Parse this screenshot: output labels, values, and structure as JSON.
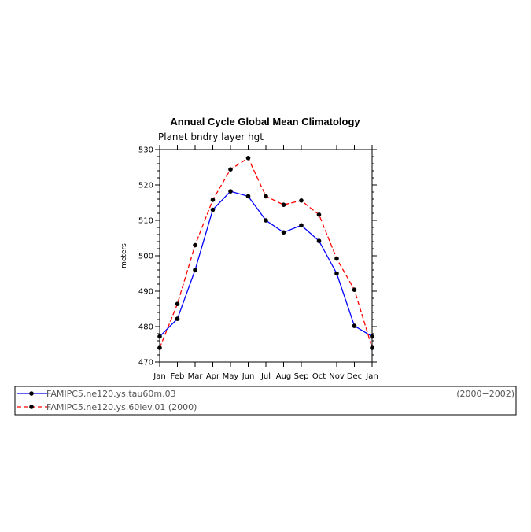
{
  "chart_data": {
    "type": "line",
    "title": "Annual Cycle Global Mean Climatology",
    "subtitle": "Planet bndry layer hgt",
    "ylabel": "meters",
    "xlabel": "",
    "categories": [
      "Jan",
      "Feb",
      "Mar",
      "Apr",
      "May",
      "Jun",
      "Jul",
      "Aug",
      "Sep",
      "Oct",
      "Nov",
      "Dec",
      "Jan"
    ],
    "ylim": [
      470,
      530
    ],
    "yticks": [
      470,
      480,
      490,
      500,
      510,
      520,
      530
    ],
    "grid": false,
    "legend_position": "bottom",
    "series": [
      {
        "name": "FAMIPC5.ne120.ys.tau60m.03",
        "period": "(2000−2002)",
        "color": "#0000ff",
        "dash": "solid",
        "values": [
          477.2,
          482.2,
          496.0,
          513.0,
          518.2,
          516.8,
          510.0,
          506.6,
          508.6,
          504.2,
          495.0,
          480.2,
          477.2
        ]
      },
      {
        "name": "FAMIPC5.ne120.ys.60lev.01 (2000)",
        "period": "",
        "color": "#ff0000",
        "dash": "dashed",
        "values": [
          474.0,
          486.4,
          503.0,
          515.8,
          524.4,
          527.6,
          516.8,
          514.4,
          515.6,
          511.6,
          499.2,
          490.4,
          474.0
        ]
      }
    ]
  }
}
